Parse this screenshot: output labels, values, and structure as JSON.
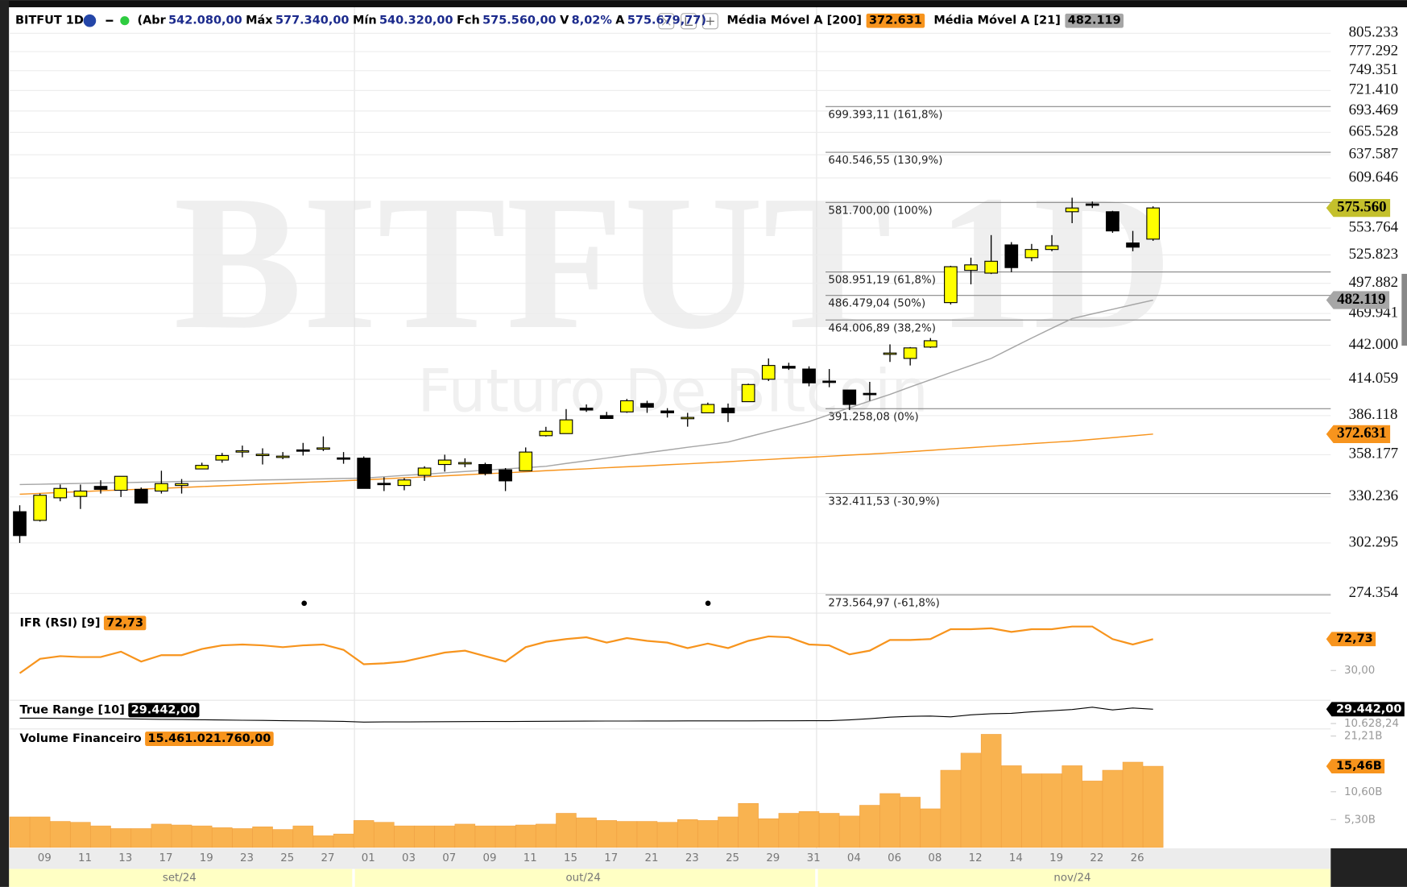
{
  "chart_data": [
    {
      "type": "candlestick",
      "title": "BITFUT 1D",
      "subtitle": "Futuro De Bitcoin",
      "header": {
        "symbol": "BITFUT 1D",
        "fields": [
          {
            "label": "(Abr",
            "value": "542.080,00"
          },
          {
            "label": "Máx",
            "value": "577.340,00"
          },
          {
            "label": "Mín",
            "value": "540.320,00"
          },
          {
            "label": "Fch",
            "value": "575.560,00"
          },
          {
            "label": "V",
            "value": "8,02%"
          },
          {
            "label": "A",
            "value": "575.679,77)"
          }
        ]
      },
      "categories": [
        null,
        "09",
        null,
        "11",
        null,
        "13",
        null,
        "17",
        null,
        "19",
        null,
        "23",
        null,
        "25",
        null,
        "27",
        null,
        "01",
        null,
        "03",
        null,
        "07",
        null,
        "09",
        null,
        "11",
        null,
        "15",
        null,
        "17",
        null,
        "21",
        null,
        "23",
        null,
        "25",
        null,
        "29",
        null,
        "31",
        null,
        "04",
        null,
        "06",
        null,
        "08",
        null,
        "12",
        null,
        "14",
        null,
        "19",
        null,
        "22",
        null,
        "26",
        null
      ],
      "months": [
        "set/24",
        "out/24",
        "nov/24"
      ],
      "open": [
        321000,
        315700,
        329700,
        330600,
        337000,
        334500,
        335100,
        334000,
        337600,
        348500,
        354500,
        360400,
        358200,
        357000,
        361500,
        362500,
        356000,
        355800,
        339000,
        337600,
        344200,
        351500,
        352700,
        351500,
        347900,
        347300,
        371500,
        373000,
        391700,
        386100,
        388900,
        395200,
        389600,
        384700,
        388200,
        391700,
        396600,
        414100,
        424500,
        422300,
        412600,
        405600,
        403000,
        435300,
        431000,
        440500,
        479800,
        510500,
        507800,
        536100,
        523100,
        531400,
        571400,
        580000,
        571400,
        538100,
        542080
      ],
      "high": [
        325000,
        332400,
        338200,
        338200,
        341000,
        343600,
        336300,
        347300,
        341800,
        352700,
        359400,
        364500,
        362600,
        360000,
        366400,
        371000,
        360000,
        357000,
        343000,
        342400,
        350300,
        358200,
        355700,
        352700,
        349100,
        363200,
        377900,
        391000,
        394500,
        388900,
        398700,
        397300,
        391700,
        388200,
        395900,
        395200,
        410600,
        431000,
        427400,
        424500,
        422300,
        405600,
        412000,
        442800,
        440500,
        448200,
        515000,
        523100,
        546300,
        539000,
        537100,
        546300,
        587000,
        582700,
        572400,
        550700,
        577340
      ],
      "low": [
        302300,
        315000,
        327500,
        322700,
        332400,
        330200,
        326400,
        332400,
        332400,
        348500,
        352700,
        356400,
        351500,
        355100,
        357600,
        360700,
        352000,
        335700,
        334000,
        334500,
        340600,
        346700,
        349700,
        344200,
        334000,
        347300,
        370900,
        373000,
        388900,
        383700,
        388200,
        388200,
        384700,
        378000,
        388200,
        381400,
        396600,
        412700,
        421600,
        408500,
        407800,
        390300,
        397300,
        428100,
        425200,
        439800,
        478100,
        497000,
        506900,
        508700,
        519500,
        529600,
        559000,
        575500,
        548700,
        529600,
        540320
      ],
      "close": [
        306600,
        331300,
        335700,
        334000,
        335100,
        343600,
        326400,
        338800,
        338800,
        350900,
        357600,
        360900,
        358500,
        357200,
        361300,
        362900,
        355800,
        335700,
        338600,
        341200,
        349100,
        354500,
        352800,
        345500,
        340600,
        360000,
        374700,
        383000,
        390300,
        384000,
        397300,
        392400,
        388200,
        384800,
        394500,
        388200,
        409900,
        425200,
        423000,
        411200,
        412500,
        394500,
        402800,
        435500,
        439800,
        445900,
        514100,
        515900,
        519500,
        513200,
        531400,
        535200,
        575500,
        579600,
        550700,
        533800,
        575560
      ],
      "up_color": "#ffff00",
      "down_color": "#000000",
      "last_label": "575.560",
      "last_color": "#c4c02c",
      "log_scale": true,
      "grid": true,
      "ylim": [
        265500,
        837800
      ],
      "yticks": [
        {
          "value": 805233,
          "label": "805.233"
        },
        {
          "value": 777292,
          "label": "777.292"
        },
        {
          "value": 749351,
          "label": "749.351"
        },
        {
          "value": 721410,
          "label": "721.410"
        },
        {
          "value": 693469,
          "label": "693.469"
        },
        {
          "value": 665528,
          "label": "665.528"
        },
        {
          "value": 637587,
          "label": "637.587"
        },
        {
          "value": 609646,
          "label": "609.646"
        },
        {
          "value": 553764,
          "label": "553.764"
        },
        {
          "value": 525823,
          "label": "525.823"
        },
        {
          "value": 497882,
          "label": "497.882"
        },
        {
          "value": 469941,
          "label": "469.941"
        },
        {
          "value": 442000,
          "label": "442.000"
        },
        {
          "value": 414059,
          "label": "414.059"
        },
        {
          "value": 386118,
          "label": "386.118"
        },
        {
          "value": 358177,
          "label": "358.177"
        },
        {
          "value": 330236,
          "label": "330.236"
        },
        {
          "value": 302295,
          "label": "302.295"
        },
        {
          "value": 274354,
          "label": "274.354"
        }
      ],
      "series": [
        {
          "name": "Média Móvel A [200]",
          "color": "#f7941d",
          "value_label": "372.631",
          "values": [
            332000,
            332500,
            333100,
            333600,
            334200,
            334700,
            335200,
            335800,
            336300,
            336900,
            337400,
            337900,
            338500,
            339000,
            339600,
            340100,
            340700,
            341200,
            341900,
            342600,
            343200,
            343900,
            344600,
            345300,
            345900,
            346600,
            347300,
            348000,
            348600,
            349300,
            350000,
            350600,
            351300,
            352000,
            352700,
            353400,
            354200,
            354900,
            355700,
            356400,
            357100,
            357900,
            358600,
            359400,
            360300,
            361200,
            362200,
            363100,
            364000,
            364900,
            365900,
            366800,
            367700,
            368900,
            370100,
            371400,
            372631
          ]
        },
        {
          "name": "Média Móvel A [21]",
          "color": "#a6a6a6",
          "value_label": "482.119",
          "values": [
            338200,
            338400,
            338700,
            338900,
            339200,
            339400,
            339700,
            339900,
            340200,
            340400,
            340700,
            340900,
            341200,
            341400,
            341700,
            341900,
            342200,
            342400,
            343300,
            344200,
            345000,
            345900,
            346800,
            347700,
            348500,
            349400,
            350300,
            352200,
            354000,
            355900,
            357700,
            359600,
            361400,
            363300,
            365100,
            367000,
            370700,
            374400,
            378000,
            381700,
            386800,
            392000,
            397100,
            402200,
            408000,
            413700,
            419500,
            425200,
            431000,
            439600,
            448200,
            456700,
            465300,
            469500,
            473700,
            477900,
            482119
          ]
        }
      ],
      "annotations": [
        {
          "text": "699.393,11 (161,8%)",
          "value": 699393.11
        },
        {
          "text": "640.546,55 (130,9%)",
          "value": 640546.55
        },
        {
          "text": "581.700,00 (100%)",
          "value": 581700.0
        },
        {
          "text": "508.951,19 (61,8%)",
          "value": 508951.19
        },
        {
          "text": "486.479,04 (50%)",
          "value": 486479.04
        },
        {
          "text": "464.006,89 (38,2%)",
          "value": 464006.89
        },
        {
          "text": "391.258,08 (0%)",
          "value": 391258.08
        },
        {
          "text": "332.411,53 (-30,9%)",
          "value": 332411.53
        },
        {
          "text": "273.564,97 (-61,8%)",
          "value": 273564.97
        }
      ]
    },
    {
      "type": "line",
      "title": "IFR (RSI) [9]",
      "color": "#f7941d",
      "last_label": "72,73",
      "label_color": "#f7941d",
      "values": [
        26.3,
        45.9,
        49.5,
        48.3,
        48.3,
        55.6,
        42.2,
        50.8,
        50.8,
        59.3,
        64.2,
        65.4,
        64.2,
        61.7,
        64.2,
        65.4,
        58.1,
        38.5,
        39.8,
        42.2,
        48.3,
        54.4,
        56.9,
        49.5,
        42.2,
        61.7,
        69.1,
        72.7,
        75.2,
        67.9,
        74.0,
        70.3,
        67.9,
        60.5,
        66.6,
        60.5,
        70.3,
        76.4,
        75.2,
        65.4,
        64.2,
        52.0,
        56.9,
        71.5,
        71.5,
        72.7,
        86.2,
        86.2,
        87.4,
        82.5,
        86.2,
        86.2,
        89.8,
        89.8,
        72.7,
        65.4,
        72.73
      ],
      "ylim": [
        -8,
        108
      ],
      "yticks": [
        {
          "value": 30,
          "label": "30,00"
        }
      ]
    },
    {
      "type": "line",
      "title": "True Range [10]",
      "color": "#000000",
      "last_label": "29.442,00",
      "label_color": "#000000",
      "values": [
        17700,
        17700,
        17500,
        17200,
        17000,
        16800,
        16500,
        16200,
        15900,
        15600,
        15300,
        15000,
        14700,
        14400,
        14100,
        13800,
        13500,
        12500,
        12700,
        12800,
        13000,
        13100,
        13200,
        13300,
        13300,
        13400,
        13600,
        13700,
        13800,
        13900,
        13900,
        14000,
        14000,
        14100,
        14100,
        14200,
        14200,
        14300,
        14300,
        14400,
        14400,
        15500,
        17000,
        19000,
        20000,
        20500,
        19500,
        22000,
        23500,
        24000,
        26000,
        27500,
        29000,
        32000,
        28500,
        31000,
        29442
      ],
      "ylim": [
        3570,
        41200
      ],
      "yticks": [
        {
          "value": 10628.24,
          "label": "10.628,24"
        }
      ]
    },
    {
      "type": "bar",
      "title": "Volume Financeiro",
      "color": "#f9b350",
      "last_label": "15,46B",
      "legend_value": "15.461.021.760,00",
      "label_color": "#f7941d",
      "values": [
        5810000000,
        5810000000,
        4960000000,
        4790000000,
        4100000000,
        3590000000,
        3590000000,
        4440000000,
        4270000000,
        4100000000,
        3760000000,
        3590000000,
        3930000000,
        3420000000,
        4100000000,
        2220000000,
        2560000000,
        5130000000,
        4790000000,
        4100000000,
        4100000000,
        4100000000,
        4440000000,
        4100000000,
        4100000000,
        4270000000,
        4440000000,
        6500000000,
        5640000000,
        5130000000,
        4960000000,
        4960000000,
        4790000000,
        5300000000,
        5130000000,
        5810000000,
        8380000000,
        5470000000,
        6500000000,
        6840000000,
        6500000000,
        5980000000,
        8030000000,
        10260000000,
        9570000000,
        7350000000,
        14700000000,
        17950000000,
        21540000000,
        15560000000,
        14020000000,
        14020000000,
        15560000000,
        12650000000,
        14700000000,
        16240000000,
        15461021760
      ],
      "ylim": [
        0,
        22560000000
      ],
      "yticks": [
        {
          "value": 5300000000,
          "label": "5,30B"
        },
        {
          "value": 10600000000,
          "label": "10,60B"
        },
        {
          "value": 21210000000,
          "label": "21,21B"
        }
      ]
    }
  ]
}
